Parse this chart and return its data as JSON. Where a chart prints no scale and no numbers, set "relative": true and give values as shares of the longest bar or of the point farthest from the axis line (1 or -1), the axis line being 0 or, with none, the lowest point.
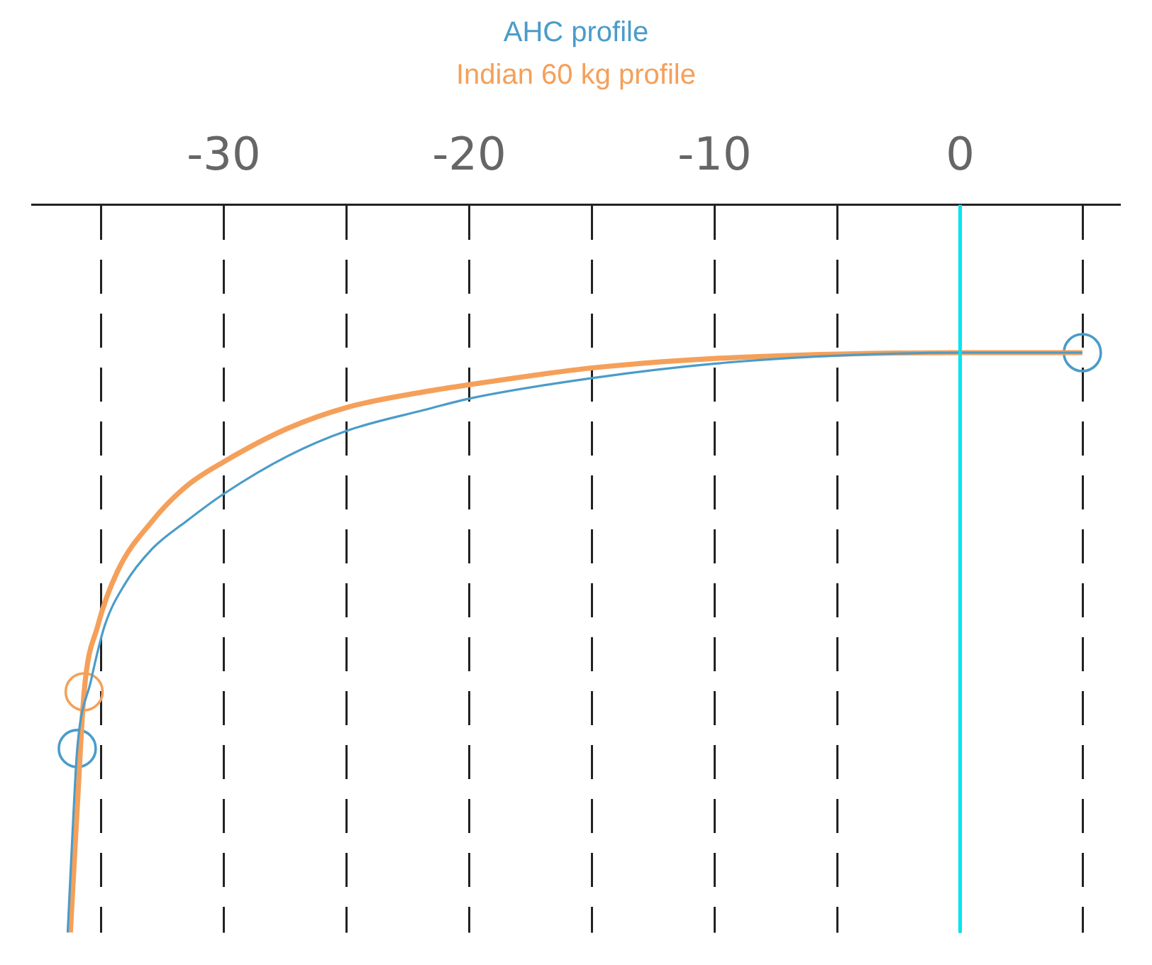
{
  "chart_data": {
    "type": "line",
    "relative": true,
    "legend": "top",
    "grid": "x",
    "marker": "none",
    "line_style": "solid",
    "xlim": [
      -37.8,
      6.5
    ],
    "xticks": [
      {
        "value": -35,
        "label": null
      },
      -30,
      {
        "value": -25,
        "label": null
      },
      -20,
      {
        "value": -15,
        "label": null
      },
      -10,
      {
        "value": -5,
        "label": null
      },
      0,
      {
        "value": 5,
        "label": null
      }
    ],
    "ref_lines": [
      {
        "axis": "x",
        "value": 0,
        "color": "#00e5ee",
        "line_style": "solid"
      }
    ],
    "series": [
      {
        "name": "AHC profile",
        "color": "#4a9cc9",
        "x": [
          -36.36,
          -36.14,
          -35.97,
          -35.42,
          -34.86,
          -34.03,
          -32.93,
          -31.54,
          -30,
          -27.39,
          -24.96,
          -21.86,
          -19.98,
          -15,
          -9.96,
          -4.98,
          0,
          4.98
        ],
        "values": [
          -1,
          -0.847,
          -0.747,
          -0.655,
          -0.579,
          -0.521,
          -0.473,
          -0.435,
          -0.397,
          -0.345,
          -0.31,
          -0.282,
          -0.266,
          -0.238,
          -0.218,
          -0.207,
          -0.203,
          -0.203
        ]
      },
      {
        "name": "Indian 60 kg profile",
        "color": "#f5a05a",
        "x": [
          -36.25,
          -35.97,
          -35.69,
          -35.14,
          -34.31,
          -32.93,
          -31.54,
          -30,
          -27.39,
          -24.96,
          -21.86,
          -19.98,
          -15,
          -9.96,
          -4.98,
          0,
          4.98
        ],
        "values": [
          -1,
          -0.828,
          -0.669,
          -0.579,
          -0.502,
          -0.435,
          -0.387,
          -0.353,
          -0.307,
          -0.278,
          -0.257,
          -0.247,
          -0.224,
          -0.211,
          -0.205,
          -0.203,
          -0.203
        ]
      },
      {
        "type": "scatter",
        "marker": "circle",
        "color": "#4a9cc9",
        "x": [
          -35.97,
          4.98
        ],
        "values": [
          -0.747,
          -0.203
        ]
      },
      {
        "type": "scatter",
        "marker": "circle",
        "color": "#f5a05a",
        "x": [
          -35.69
        ],
        "values": [
          -0.669
        ]
      }
    ]
  }
}
